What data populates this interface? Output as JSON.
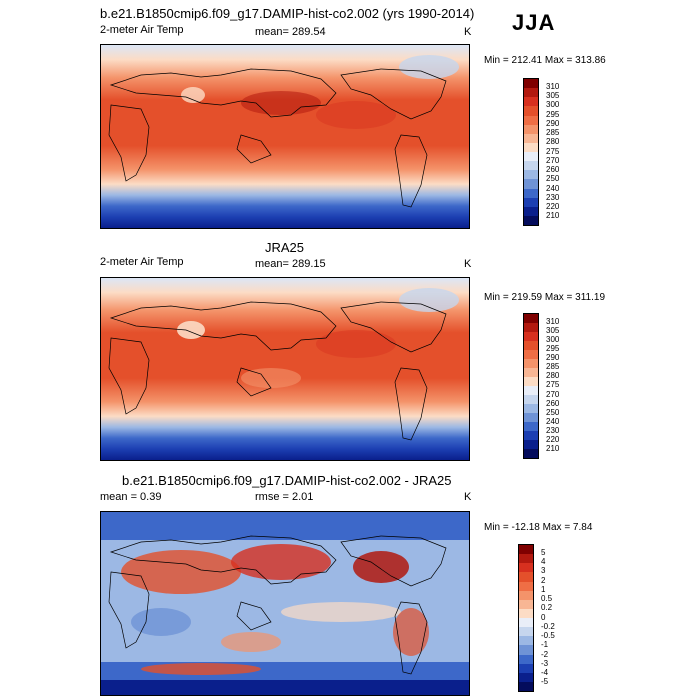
{
  "season": "JJA",
  "panels": [
    {
      "title": "b.e21.B1850cmip6.f09_g17.DAMIP-hist-co2.002 (yrs 1990-2014)",
      "left_label": "2-meter Air Temp",
      "center_label": "mean= 289.54",
      "unit": "K",
      "minmax": "Min = 212.41 Max = 313.86",
      "colorbar_labels": [
        "310",
        "305",
        "300",
        "295",
        "290",
        "285",
        "280",
        "275",
        "270",
        "260",
        "250",
        "240",
        "230",
        "220",
        "210"
      ],
      "colors": [
        "#7f0000",
        "#b2190f",
        "#d7301f",
        "#e4502b",
        "#ef6e45",
        "#f4936a",
        "#f8b694",
        "#fcdcc5",
        "#e9eef8",
        "#c6d6ee",
        "#9cb8e4",
        "#6f93d6",
        "#3d68c9",
        "#1c3fb2",
        "#0a1f8c",
        "#040c5c"
      ]
    },
    {
      "title": "JRA25",
      "left_label": "2-meter Air Temp",
      "center_label": "mean= 289.15",
      "unit": "K",
      "minmax": "Min = 219.59 Max = 311.19",
      "colorbar_labels": [
        "310",
        "305",
        "300",
        "295",
        "290",
        "285",
        "280",
        "275",
        "270",
        "260",
        "250",
        "240",
        "230",
        "220",
        "210"
      ],
      "colors": [
        "#7f0000",
        "#b2190f",
        "#d7301f",
        "#e4502b",
        "#ef6e45",
        "#f4936a",
        "#f8b694",
        "#fcdcc5",
        "#e9eef8",
        "#c6d6ee",
        "#9cb8e4",
        "#6f93d6",
        "#3d68c9",
        "#1c3fb2",
        "#0a1f8c",
        "#040c5c"
      ]
    },
    {
      "title": "b.e21.B1850cmip6.f09_g17.DAMIP-hist-co2.002 - JRA25",
      "left_label": "mean =  0.39",
      "center_label": "rmse =  2.01",
      "unit": "K",
      "minmax": "Min = -12.18 Max =  7.84",
      "colorbar_labels": [
        "5",
        "4",
        "3",
        "2",
        "1",
        "0.5",
        "0.2",
        "0",
        "-0.2",
        "-0.5",
        "-1",
        "-2",
        "-3",
        "-4",
        "-5"
      ],
      "colors": [
        "#7f0000",
        "#b2190f",
        "#d7301f",
        "#e4502b",
        "#ef6e45",
        "#f4936a",
        "#f8b694",
        "#fcdcc5",
        "#e9eef8",
        "#c6d6ee",
        "#9cb8e4",
        "#6f93d6",
        "#3d68c9",
        "#1c3fb2",
        "#0a1f8c",
        "#040c5c"
      ]
    }
  ]
}
